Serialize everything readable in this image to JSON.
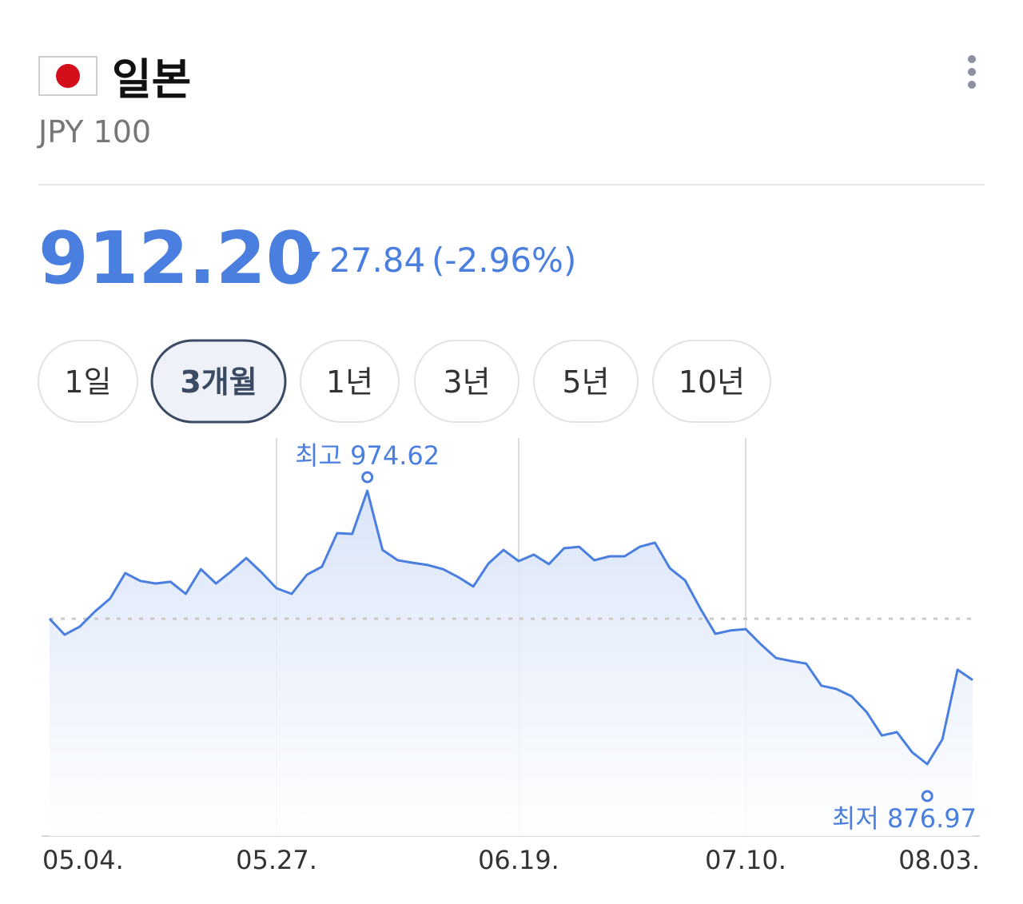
{
  "header": {
    "title": "일본",
    "subtitle": "JPY 100"
  },
  "quote": {
    "price": "912.20",
    "change": "27.84",
    "change_percent": "(-2.96%)"
  },
  "tabs": {
    "items": [
      "1일",
      "3개월",
      "1년",
      "3년",
      "5년",
      "10년"
    ],
    "selected": 1
  },
  "chart_data": {
    "type": "line",
    "categories": [
      "05.04.",
      null,
      null,
      null,
      null,
      null,
      null,
      null,
      null,
      null,
      null,
      null,
      null,
      null,
      null,
      "05.27.",
      null,
      null,
      null,
      null,
      null,
      null,
      null,
      null,
      null,
      null,
      null,
      null,
      null,
      null,
      null,
      "06.19.",
      null,
      null,
      null,
      null,
      null,
      null,
      null,
      null,
      null,
      null,
      null,
      null,
      null,
      null,
      "07.10.",
      null,
      null,
      null,
      null,
      null,
      null,
      null,
      null,
      null,
      null,
      null,
      null,
      null,
      null,
      "08.03."
    ],
    "series": [
      {
        "color": "#4a7fe0",
        "values": [
          928.9,
          923.2,
          926.1,
          931.5,
          936.1,
          945.2,
          942.4,
          941.5,
          942.1,
          937.8,
          946.6,
          941.5,
          945.8,
          950.6,
          945.5,
          939.8,
          937.8,
          944.6,
          947.5,
          959.5,
          959.2,
          974.62,
          953.5,
          949.8,
          948.9,
          948.1,
          946.6,
          943.8,
          940.4,
          948.6,
          953.5,
          949.5,
          951.8,
          948.4,
          954.1,
          954.6,
          949.8,
          951.2,
          951.2,
          954.6,
          956.1,
          946.9,
          942.6,
          932.6,
          923.5,
          924.7,
          925.2,
          919.8,
          914.9,
          913.8,
          912.9,
          905.0,
          903.8,
          901.2,
          895.5,
          887.2,
          888.4,
          881.2,
          876.97,
          885.8,
          910.7,
          907.0
        ]
      }
    ],
    "annotations": [
      {
        "label": "최고",
        "value": 974.62
      },
      {
        "label": "최저",
        "value": 876.97
      }
    ]
  }
}
